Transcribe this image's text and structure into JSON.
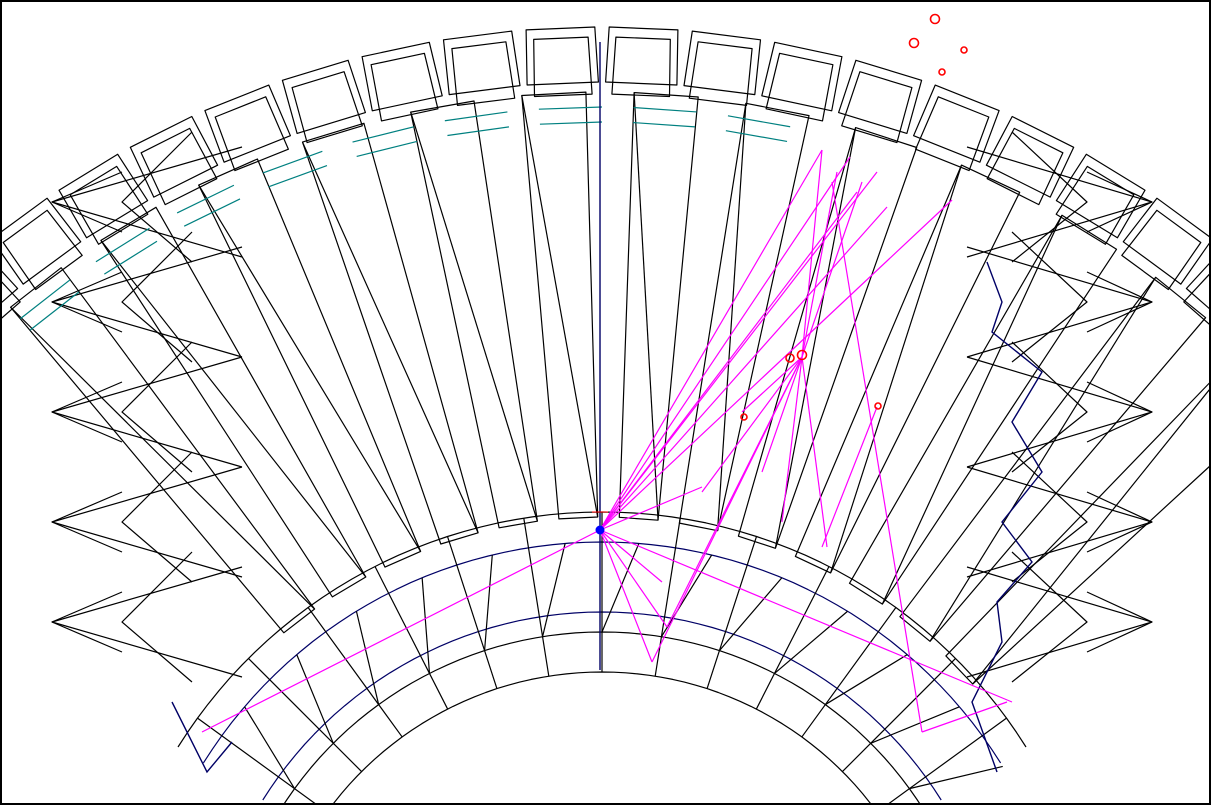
{
  "view": {
    "background": "#ffffff",
    "frame_color": "#000000"
  },
  "colors": {
    "wireframe": "#000000",
    "highlight_edges": "#000066",
    "inner_teeth": "#008080",
    "rays": "#ff00ff",
    "markers": "#ff0000",
    "origin": "#0000ff"
  },
  "legend": {},
  "icons": [
    "origin-point-icon",
    "marker-circle-icon"
  ]
}
